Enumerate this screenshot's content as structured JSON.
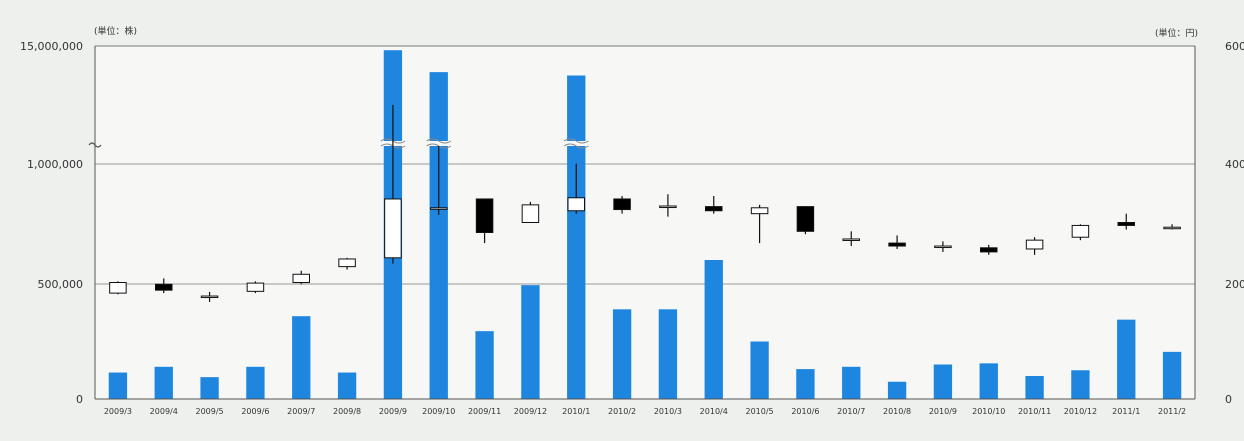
{
  "chart_data": {
    "type": "bar",
    "subtype": "bar-with-candlestick",
    "y_left_unit": "(単位：株)",
    "y_right_unit": "(単位：円)",
    "y_left_ticks": [
      "15,000,000",
      "1,000,000",
      "500,000",
      "0"
    ],
    "y_right_ticks": [
      "600",
      "400",
      "200",
      "0"
    ],
    "y_left_axis_break": true,
    "categories": [
      "2009/3",
      "2009/4",
      "2009/5",
      "2009/6",
      "2009/7",
      "2009/8",
      "2009/9",
      "2009/10",
      "2009/11",
      "2009/12",
      "2010/1",
      "2010/2",
      "2010/3",
      "2010/4",
      "2010/5",
      "2010/6",
      "2010/7",
      "2010/8",
      "2010/9",
      "2010/10",
      "2010/11",
      "2010/12",
      "2011/1",
      "2011/2"
    ],
    "volume": [
      115000,
      140000,
      95000,
      140000,
      360000,
      115000,
      14500000,
      11900000,
      295000,
      495000,
      11500000,
      390000,
      390000,
      600000,
      250000,
      130000,
      140000,
      75000,
      150000,
      155000,
      100000,
      125000,
      345000,
      205000
    ],
    "volume_broken": [
      false,
      false,
      false,
      false,
      false,
      false,
      true,
      true,
      false,
      false,
      true,
      false,
      false,
      false,
      false,
      false,
      false,
      false,
      false,
      false,
      false,
      false,
      false,
      false
    ],
    "price": [
      {
        "open": 180,
        "high": 200,
        "low": 178,
        "close": 198
      },
      {
        "open": 195,
        "high": 205,
        "low": 180,
        "close": 185
      },
      {
        "open": 175,
        "high": 182,
        "low": 165,
        "close": 175
      },
      {
        "open": 183,
        "high": 200,
        "low": 180,
        "close": 197
      },
      {
        "open": 198,
        "high": 218,
        "low": 195,
        "close": 212
      },
      {
        "open": 225,
        "high": 240,
        "low": 220,
        "close": 238
      },
      {
        "open": 240,
        "high": 500,
        "low": 230,
        "close": 340
      },
      {
        "open": 325,
        "high": 430,
        "low": 313,
        "close": 325
      },
      {
        "open": 340,
        "high": 340,
        "low": 265,
        "close": 283
      },
      {
        "open": 300,
        "high": 335,
        "low": 300,
        "close": 330
      },
      {
        "open": 320,
        "high": 400,
        "low": 315,
        "close": 342
      },
      {
        "open": 340,
        "high": 345,
        "low": 315,
        "close": 322
      },
      {
        "open": 328,
        "high": 348,
        "low": 310,
        "close": 328
      },
      {
        "open": 327,
        "high": 345,
        "low": 315,
        "close": 320
      },
      {
        "open": 315,
        "high": 330,
        "low": 265,
        "close": 325
      },
      {
        "open": 327,
        "high": 327,
        "low": 280,
        "close": 285
      },
      {
        "open": 270,
        "high": 285,
        "low": 260,
        "close": 272
      },
      {
        "open": 265,
        "high": 278,
        "low": 255,
        "close": 260
      },
      {
        "open": 260,
        "high": 268,
        "low": 250,
        "close": 260
      },
      {
        "open": 257,
        "high": 262,
        "low": 245,
        "close": 250
      },
      {
        "open": 255,
        "high": 275,
        "low": 245,
        "close": 270
      },
      {
        "open": 275,
        "high": 297,
        "low": 270,
        "close": 295
      },
      {
        "open": 300,
        "high": 315,
        "low": 288,
        "close": 295
      },
      {
        "open": 292,
        "high": 297,
        "low": 288,
        "close": 292
      }
    ],
    "colors": {
      "volume_bar": "#1f86e0",
      "candle_up": "#ffffff",
      "candle_down": "#000000",
      "grid": "#999999",
      "background": "#f6f6f4"
    },
    "grid": true,
    "legend": "none"
  }
}
